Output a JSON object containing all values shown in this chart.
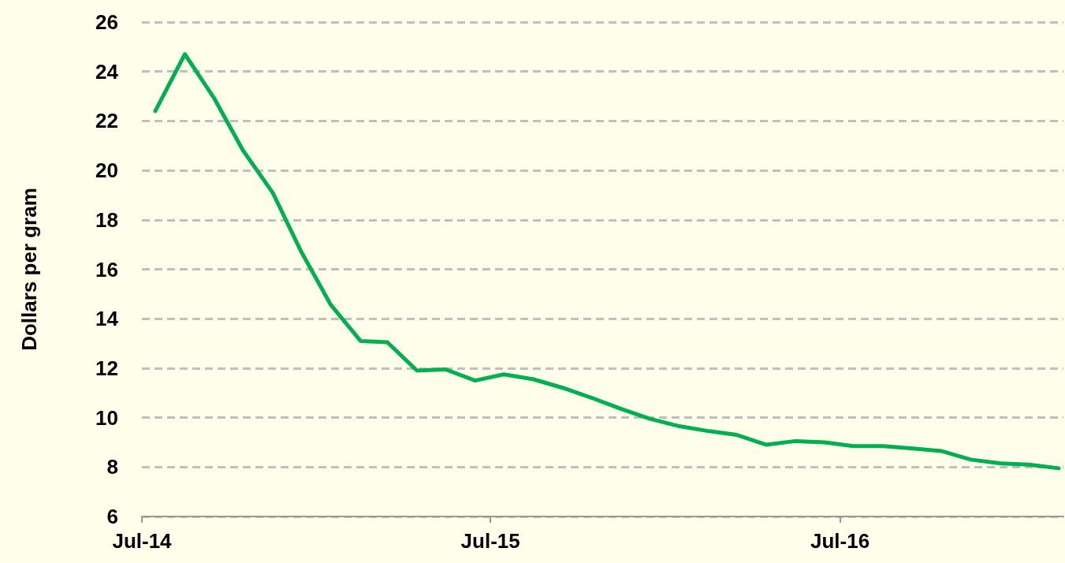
{
  "chart_data": {
    "type": "line",
    "ylabel": "Dollars per gram",
    "x": [
      "2014-07-15",
      "2014-08-15",
      "2014-09-15",
      "2014-10-15",
      "2014-11-15",
      "2014-12-15",
      "2015-01-15",
      "2015-02-15",
      "2015-03-15",
      "2015-04-15",
      "2015-05-15",
      "2015-06-15",
      "2015-07-15",
      "2015-08-15",
      "2015-09-15",
      "2015-10-15",
      "2015-11-15",
      "2015-12-15",
      "2016-01-15",
      "2016-02-15",
      "2016-03-15",
      "2016-04-15",
      "2016-05-15",
      "2016-06-15",
      "2016-07-15",
      "2016-08-15",
      "2016-09-15",
      "2016-10-15",
      "2016-11-15",
      "2016-12-15",
      "2017-01-15",
      "2017-02-15"
    ],
    "series": [
      {
        "color": "#00b050",
        "values": [
          22.4,
          24.7,
          22.9,
          20.8,
          19.1,
          16.7,
          14.55,
          13.1,
          13.05,
          11.9,
          11.95,
          11.5,
          11.75,
          11.55,
          11.2,
          10.8,
          10.35,
          9.95,
          9.65,
          9.45,
          9.3,
          8.9,
          9.05,
          9.0,
          8.85,
          8.85,
          8.75,
          8.65,
          8.3,
          8.15,
          8.1,
          7.95
        ]
      }
    ],
    "xlim": [
      "2014-07-01",
      "2017-02-20"
    ],
    "xticks": [
      {
        "value": "2014-07-01",
        "label": "Jul-14"
      },
      {
        "value": "2015-07-01",
        "label": "Jul-15"
      },
      {
        "value": "2016-07-01",
        "label": "Jul-16"
      }
    ],
    "ylim": [
      6,
      26
    ],
    "yticks": [
      6,
      8,
      10,
      12,
      14,
      16,
      18,
      20,
      22,
      24,
      26
    ],
    "grid": "y",
    "marker": "none",
    "line_style": "solid"
  }
}
